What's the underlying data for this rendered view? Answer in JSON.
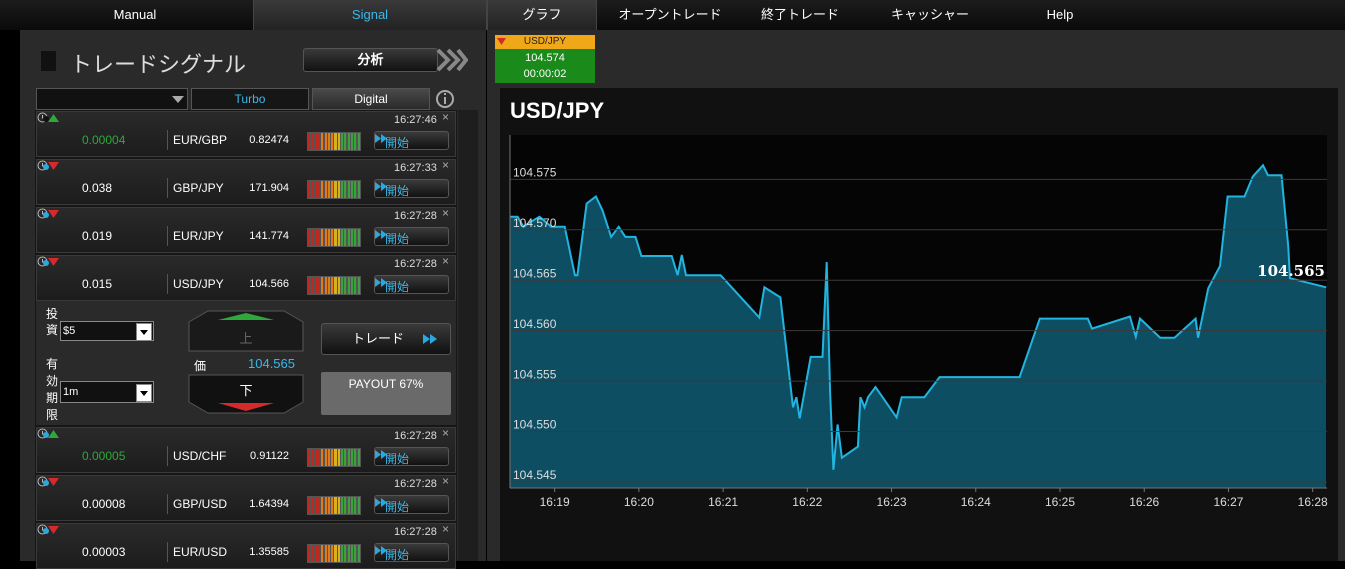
{
  "nav": [
    "Manual",
    "Signal",
    "グラフ",
    "オープントレード",
    "終了トレード",
    "キャッシャー",
    "Help"
  ],
  "panel": {
    "title": "トレードシグナル",
    "analyze": "分析",
    "tabs": [
      "Turbo",
      "Digital"
    ],
    "start_label": "開始",
    "signals": [
      {
        "time": "16:27:46",
        "direction": "up",
        "dot_color": "#111111",
        "change": 4e-05,
        "pair": "EUR/GBP",
        "price": 0.82474
      },
      {
        "time": "16:27:33",
        "direction": "down",
        "dot_color": "#2aa8e0",
        "change": 0.038,
        "pair": "GBP/JPY",
        "price": 171.904
      },
      {
        "time": "16:27:28",
        "direction": "down",
        "dot_color": "#2aa8e0",
        "change": 0.019,
        "pair": "EUR/JPY",
        "price": 141.774
      },
      {
        "time": "16:27:28",
        "direction": "down",
        "dot_color": "#2aa8e0",
        "change": 0.015,
        "pair": "USD/JPY",
        "price": 104.566
      },
      {
        "time": "16:27:28",
        "direction": "up",
        "dot_color": "#2aa8e0",
        "change": 5e-05,
        "pair": "USD/CHF",
        "price": 0.91122
      },
      {
        "time": "16:27:28",
        "direction": "down",
        "dot_color": "#2aa8e0",
        "change": 8e-05,
        "pair": "GBP/USD",
        "price": 1.64394
      },
      {
        "time": "16:27:28",
        "direction": "down",
        "dot_color": "#2aa8e0",
        "change": 3e-05,
        "pair": "EUR/USD",
        "price": 1.35585
      }
    ],
    "trade_form": {
      "invest_label": "投資",
      "invest_value": "$5",
      "expiry_label": "有効期限",
      "expiry_value": "1m",
      "up": "上",
      "price_label": "価",
      "price": 104.565,
      "down": "下",
      "trade": "トレード",
      "payout": "PAYOUT 67%"
    }
  },
  "ticker": {
    "pair": "USD/JPY",
    "price": 104.574,
    "timer": "00:00:02"
  },
  "chart_data": {
    "type": "area",
    "title": "USD/JPY",
    "color": "#22b4e0",
    "fill": "#0e4e62",
    "grid": true,
    "last_price": 104.565,
    "x": [
      978.47,
      978.56,
      978.63,
      978.7,
      978.82,
      978.96,
      979.12,
      979.24,
      979.27,
      979.38,
      979.49,
      979.57,
      979.67,
      979.76,
      979.84,
      979.96,
      980.03,
      980.39,
      980.46,
      980.51,
      980.56,
      980.97,
      981.43,
      981.49,
      981.68,
      981.83,
      981.87,
      981.91,
      982.04,
      982.18,
      982.23,
      982.27,
      982.31,
      982.36,
      982.41,
      982.6,
      982.63,
      982.68,
      982.72,
      982.81,
      983.06,
      983.12,
      983.39,
      983.57,
      984.52,
      984.76,
      985.33,
      985.38,
      985.83,
      985.9,
      985.95,
      986.19,
      986.36,
      986.61,
      986.64,
      986.76,
      986.9,
      986.99,
      987.19,
      987.29,
      987.41,
      987.47,
      987.63,
      987.71,
      987.73,
      988.16
    ],
    "values": [
      104.5713,
      104.5713,
      104.5703,
      104.5707,
      104.5713,
      104.5703,
      104.5703,
      104.5655,
      104.5655,
      104.5726,
      104.5733,
      104.5719,
      104.5693,
      104.5703,
      104.5693,
      104.5693,
      104.5674,
      104.5674,
      104.5655,
      104.5675,
      104.5655,
      104.5655,
      104.5613,
      104.5643,
      104.5633,
      104.5524,
      104.5534,
      104.5513,
      104.5574,
      104.5574,
      104.5668,
      104.5539,
      104.5462,
      104.5507,
      104.5474,
      104.5485,
      104.5534,
      104.5524,
      104.5534,
      104.5544,
      104.5514,
      104.5534,
      104.5534,
      104.5554,
      104.5554,
      104.5612,
      104.5612,
      104.5602,
      104.5614,
      104.5594,
      104.5612,
      104.5593,
      104.5593,
      104.5612,
      104.5593,
      104.5642,
      104.5664,
      104.5733,
      104.5733,
      104.5753,
      104.5764,
      104.5754,
      104.5754,
      104.5683,
      104.5652,
      104.5643
    ],
    "xlim": [
      978.47,
      988.17
    ],
    "ylim": [
      104.5444,
      104.5794
    ],
    "xticks": [
      {
        "value": 979,
        "label": "16:19"
      },
      {
        "value": 980,
        "label": "16:20"
      },
      {
        "value": 981,
        "label": "16:21"
      },
      {
        "value": 982,
        "label": "16:22"
      },
      {
        "value": 983,
        "label": "16:23"
      },
      {
        "value": 984,
        "label": "16:24"
      },
      {
        "value": 985,
        "label": "16:25"
      },
      {
        "value": 986,
        "label": "16:26"
      },
      {
        "value": 987,
        "label": "16:27"
      },
      {
        "value": 988,
        "label": "16:28"
      }
    ],
    "yticks": [
      104.545,
      {
        "value": 104.55,
        "label": "104.550"
      },
      104.555,
      {
        "value": 104.56,
        "label": "104.560"
      },
      104.565,
      {
        "value": 104.57,
        "label": "104.570"
      },
      104.575
    ]
  }
}
